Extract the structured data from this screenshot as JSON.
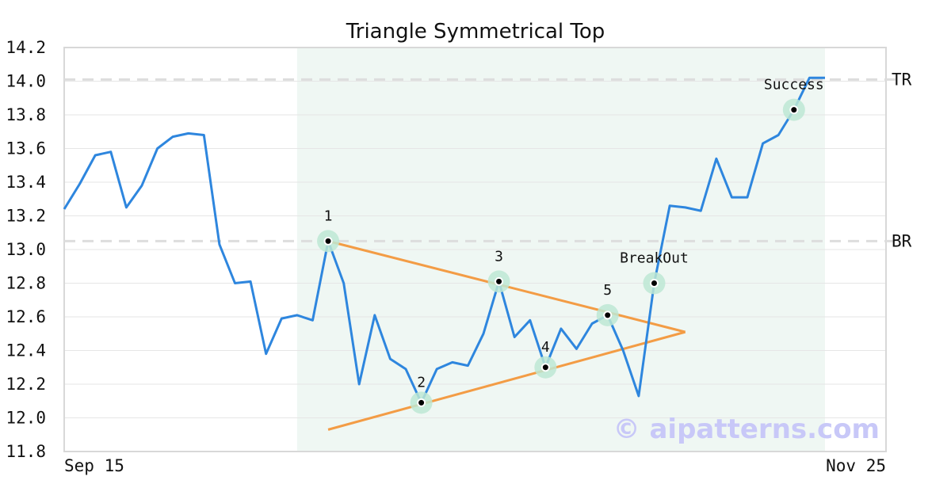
{
  "chart_data": {
    "type": "line",
    "title": "Triangle Symmetrical Top",
    "x_start_label": "Sep 15",
    "x_end_label": "Nov 25",
    "ylim": [
      11.8,
      14.2
    ],
    "yticks": [
      "11.8",
      "12.0",
      "12.2",
      "12.4",
      "12.6",
      "12.8",
      "13.0",
      "13.2",
      "13.4",
      "13.6",
      "13.8",
      "14.0",
      "14.2"
    ],
    "grid": true,
    "series": [
      {
        "values": [
          13.24,
          13.39,
          13.56,
          13.58,
          13.25,
          13.38,
          13.6,
          13.67,
          13.69,
          13.68,
          13.03,
          12.8,
          12.81,
          12.38,
          12.59,
          12.61,
          12.58,
          13.05,
          12.8,
          12.2,
          12.61,
          12.35,
          12.29,
          12.09,
          12.29,
          12.33,
          12.31,
          12.5,
          12.81,
          12.48,
          12.58,
          12.3,
          12.53,
          12.41,
          12.56,
          12.61,
          12.4,
          12.13,
          12.8,
          13.26,
          13.25,
          13.23,
          13.54,
          13.31,
          13.31,
          13.63,
          13.68,
          13.83,
          14.02,
          14.02
        ]
      }
    ],
    "pattern_region": {
      "start_index": 15,
      "end_index": 49
    },
    "reference_lines": [
      {
        "label": "TR",
        "value": 14.01
      },
      {
        "label": "BR",
        "value": 13.05
      }
    ],
    "trendlines": [
      {
        "from": [
          17,
          13.05
        ],
        "to": [
          40,
          12.51
        ]
      },
      {
        "from": [
          17,
          11.93
        ],
        "to": [
          40,
          12.51
        ]
      }
    ],
    "points": [
      {
        "label": "1",
        "index": 17,
        "value": 13.05
      },
      {
        "label": "2",
        "index": 23,
        "value": 12.09
      },
      {
        "label": "3",
        "index": 28,
        "value": 12.81
      },
      {
        "label": "4",
        "index": 31,
        "value": 12.3
      },
      {
        "label": "5",
        "index": 35,
        "value": 12.61
      },
      {
        "label": "BreakOut",
        "index": 38,
        "value": 12.8
      },
      {
        "label": "Success",
        "index": 47,
        "value": 13.83
      }
    ],
    "watermark": "© aipatterns.com",
    "colors": {
      "line": "#2e86de",
      "trendline": "#f39c45",
      "region": "#eff7f3",
      "marker_halo": "#bde8d4",
      "reference": "#dddddd",
      "grid": "#e6e6e6",
      "watermark": "#c8c8f8"
    }
  }
}
